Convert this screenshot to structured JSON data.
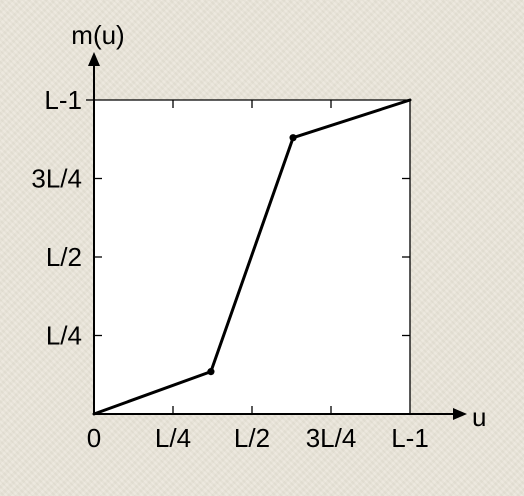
{
  "chart_data": {
    "type": "line",
    "title": "",
    "xlabel": "u",
    "ylabel": "m(u)",
    "xlim": [
      0,
      1
    ],
    "ylim": [
      0,
      1
    ],
    "x_ticks": [
      {
        "value": 0,
        "label": "0"
      },
      {
        "value": 0.25,
        "label": "L/4"
      },
      {
        "value": 0.5,
        "label": "L/2"
      },
      {
        "value": 0.75,
        "label": "3L/4"
      },
      {
        "value": 1,
        "label": "L-1"
      }
    ],
    "y_ticks": [
      {
        "value": 0.25,
        "label": "L/4"
      },
      {
        "value": 0.5,
        "label": "L/2"
      },
      {
        "value": 0.75,
        "label": "3L/4"
      },
      {
        "value": 1,
        "label": "L-1"
      }
    ],
    "series": [
      {
        "points": [
          {
            "x": 0,
            "y": 0
          },
          {
            "x": 0.37,
            "y": 0.135
          },
          {
            "x": 0.63,
            "y": 0.88
          },
          {
            "x": 1,
            "y": 1
          }
        ],
        "markers": [
          1,
          2
        ]
      }
    ],
    "grid": false,
    "colors": {
      "line": "#000000",
      "plot_background": "#ffffff"
    }
  }
}
